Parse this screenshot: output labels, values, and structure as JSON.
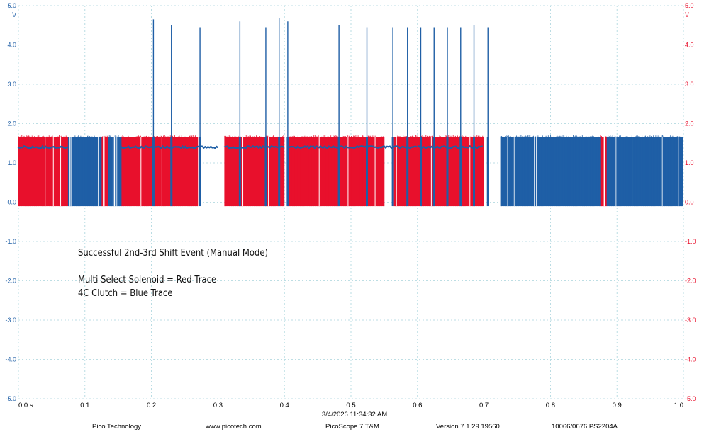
{
  "chart_data": {
    "type": "line",
    "x_axis": {
      "range": [
        0.0,
        1.0
      ],
      "ticks": [
        "0.0 s",
        "0.1",
        "0.2",
        "0.3",
        "0.4",
        "0.5",
        "0.6",
        "0.7",
        "0.8",
        "0.9",
        "1.0"
      ]
    },
    "y_left": {
      "unit": "V",
      "range": [
        -5.0,
        5.0
      ],
      "ticks": [
        "5.0",
        "4.0",
        "3.0",
        "2.0",
        "1.0",
        "0.0",
        "-1.0",
        "-2.0",
        "-3.0",
        "-4.0",
        "-5.0"
      ],
      "color": "#1f5fa6"
    },
    "y_right": {
      "unit": "V",
      "range": [
        -5.0,
        5.0
      ],
      "ticks": [
        "5.0",
        "4.0",
        "3.0",
        "2.0",
        "1.0",
        "0.0",
        "-1.0",
        "-2.0",
        "-3.0",
        "-4.0",
        "-5.0"
      ],
      "color": "#e8102c"
    },
    "grid": true,
    "series": [
      {
        "color": "#e8102c",
        "pwm_low": -0.1,
        "pwm_high": 1.65,
        "active_ranges": [
          [
            0.0,
            0.075
          ],
          [
            0.125,
            0.135
          ],
          [
            0.155,
            0.27
          ],
          [
            0.31,
            0.4
          ],
          [
            0.405,
            0.55
          ],
          [
            0.565,
            0.7
          ],
          [
            0.875,
            0.885
          ]
        ]
      },
      {
        "color": "#1f5fa6",
        "pwm_low": -0.1,
        "pwm_high": 1.65,
        "hold_level": 1.4,
        "pwm_ranges": [
          [
            0.075,
            0.125
          ],
          [
            0.135,
            0.155
          ],
          [
            0.725,
            0.875
          ],
          [
            0.885,
            1.0
          ]
        ],
        "hold_ranges": [
          [
            0.0,
            0.075
          ],
          [
            0.155,
            0.3
          ],
          [
            0.31,
            0.4
          ],
          [
            0.405,
            0.6
          ],
          [
            0.6,
            0.7
          ]
        ],
        "spikes": [
          {
            "x": 0.203,
            "peak": 4.65
          },
          {
            "x": 0.23,
            "peak": 4.5
          },
          {
            "x": 0.273,
            "peak": 4.45
          },
          {
            "x": 0.333,
            "peak": 4.6
          },
          {
            "x": 0.372,
            "peak": 4.45
          },
          {
            "x": 0.392,
            "peak": 4.68
          },
          {
            "x": 0.405,
            "peak": 4.6
          },
          {
            "x": 0.482,
            "peak": 4.5
          },
          {
            "x": 0.524,
            "peak": 4.45
          },
          {
            "x": 0.563,
            "peak": 4.45
          },
          {
            "x": 0.585,
            "peak": 4.45
          },
          {
            "x": 0.605,
            "peak": 4.45
          },
          {
            "x": 0.625,
            "peak": 4.45
          },
          {
            "x": 0.645,
            "peak": 4.45
          },
          {
            "x": 0.665,
            "peak": 4.45
          },
          {
            "x": 0.685,
            "peak": 4.5
          },
          {
            "x": 0.706,
            "peak": 4.45
          }
        ]
      }
    ],
    "annotations": [
      "Successful 2nd-3rd Shift Event (Manual Mode)",
      "",
      "Multi  Select Solenoid = Red Trace",
      "4C Clutch = Blue Trace"
    ]
  },
  "timestamp": "3/4/2026 11:34:32 AM",
  "footer": {
    "company": "Pico Technology",
    "website": "www.picotech.com",
    "product": "PicoScope 7 T&M",
    "version": "Version 7.1.29.19560",
    "device": "10066/0676 PS2204A"
  }
}
